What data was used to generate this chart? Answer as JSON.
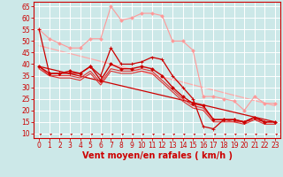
{
  "background_color": "#cce8e8",
  "grid_color": "#ffffff",
  "xlabel": "Vent moyen/en rafales ( km/h )",
  "xlabel_color": "#cc0000",
  "xlabel_fontsize": 7,
  "tick_color": "#cc0000",
  "tick_fontsize": 5.5,
  "ylim": [
    8,
    67
  ],
  "xlim": [
    -0.5,
    23.5
  ],
  "yticks": [
    10,
    15,
    20,
    25,
    30,
    35,
    40,
    45,
    50,
    55,
    60,
    65
  ],
  "xticks": [
    0,
    1,
    2,
    3,
    4,
    5,
    6,
    7,
    8,
    9,
    10,
    11,
    12,
    13,
    14,
    15,
    16,
    17,
    18,
    19,
    20,
    21,
    22,
    23
  ],
  "series": [
    {
      "x": [
        0,
        1,
        2,
        3,
        4,
        5,
        6,
        7,
        8,
        9,
        10,
        11,
        12,
        13,
        14,
        15,
        16,
        17,
        18,
        19,
        20,
        21,
        22,
        23
      ],
      "y": [
        55,
        51,
        49,
        47,
        47,
        51,
        51,
        65,
        59,
        60,
        62,
        62,
        61,
        50,
        50,
        46,
        26,
        26,
        25,
        24,
        20,
        26,
        23,
        23
      ],
      "color": "#ff9999",
      "lw": 0.8,
      "marker": "D",
      "ms": 1.8,
      "zorder": 2
    },
    {
      "x": [
        0,
        23
      ],
      "y": [
        48,
        22
      ],
      "color": "#ffaaaa",
      "lw": 0.9,
      "marker": null,
      "ms": 0,
      "zorder": 1
    },
    {
      "x": [
        0,
        1,
        2,
        3,
        4,
        5,
        6,
        7,
        8,
        9,
        10,
        11,
        12,
        13,
        14,
        15,
        16,
        17,
        18,
        19,
        20,
        21,
        22,
        23
      ],
      "y": [
        55,
        36,
        36,
        36,
        36,
        39,
        35,
        47,
        40,
        40,
        41,
        43,
        42,
        35,
        30,
        25,
        13,
        12,
        16,
        16,
        15,
        17,
        15,
        15
      ],
      "color": "#cc0000",
      "lw": 0.9,
      "marker": "+",
      "ms": 3.0,
      "zorder": 4
    },
    {
      "x": [
        0,
        1,
        2,
        3,
        4,
        5,
        6,
        7,
        8,
        9,
        10,
        11,
        12,
        13,
        14,
        15,
        16,
        17,
        18,
        19,
        20,
        21,
        22,
        23
      ],
      "y": [
        39,
        36,
        36,
        37,
        36,
        39,
        33,
        40,
        38,
        38,
        39,
        38,
        35,
        30,
        26,
        23,
        22,
        16,
        16,
        16,
        15,
        17,
        15,
        15
      ],
      "color": "#cc0000",
      "lw": 1.0,
      "marker": "D",
      "ms": 1.8,
      "zorder": 4
    },
    {
      "x": [
        0,
        1,
        2,
        3,
        4,
        5,
        6,
        7,
        8,
        9,
        10,
        11,
        12,
        13,
        14,
        15,
        16,
        17,
        18,
        19,
        20,
        21,
        22,
        23
      ],
      "y": [
        39,
        35,
        35,
        35,
        34,
        37,
        32,
        38,
        37,
        37,
        38,
        37,
        33,
        29,
        25,
        22,
        21,
        16,
        16,
        15,
        15,
        16,
        15,
        15
      ],
      "color": "#dd3333",
      "lw": 0.8,
      "marker": null,
      "ms": 0,
      "zorder": 3
    },
    {
      "x": [
        0,
        1,
        2,
        3,
        4,
        5,
        6,
        7,
        8,
        9,
        10,
        11,
        12,
        13,
        14,
        15,
        16,
        17,
        18,
        19,
        20,
        21,
        22,
        23
      ],
      "y": [
        38,
        35,
        34,
        34,
        33,
        36,
        31,
        37,
        36,
        36,
        37,
        36,
        32,
        28,
        24,
        21,
        20,
        15,
        15,
        15,
        14,
        16,
        14,
        14
      ],
      "color": "#dd3333",
      "lw": 0.8,
      "marker": null,
      "ms": 0,
      "zorder": 3
    },
    {
      "x": [
        0,
        23
      ],
      "y": [
        39,
        15
      ],
      "color": "#cc0000",
      "lw": 0.9,
      "marker": null,
      "ms": 0,
      "zorder": 2
    }
  ],
  "arrows": {
    "y_data": 9.2,
    "color": "#cc0000",
    "fontsize": 4.5
  }
}
